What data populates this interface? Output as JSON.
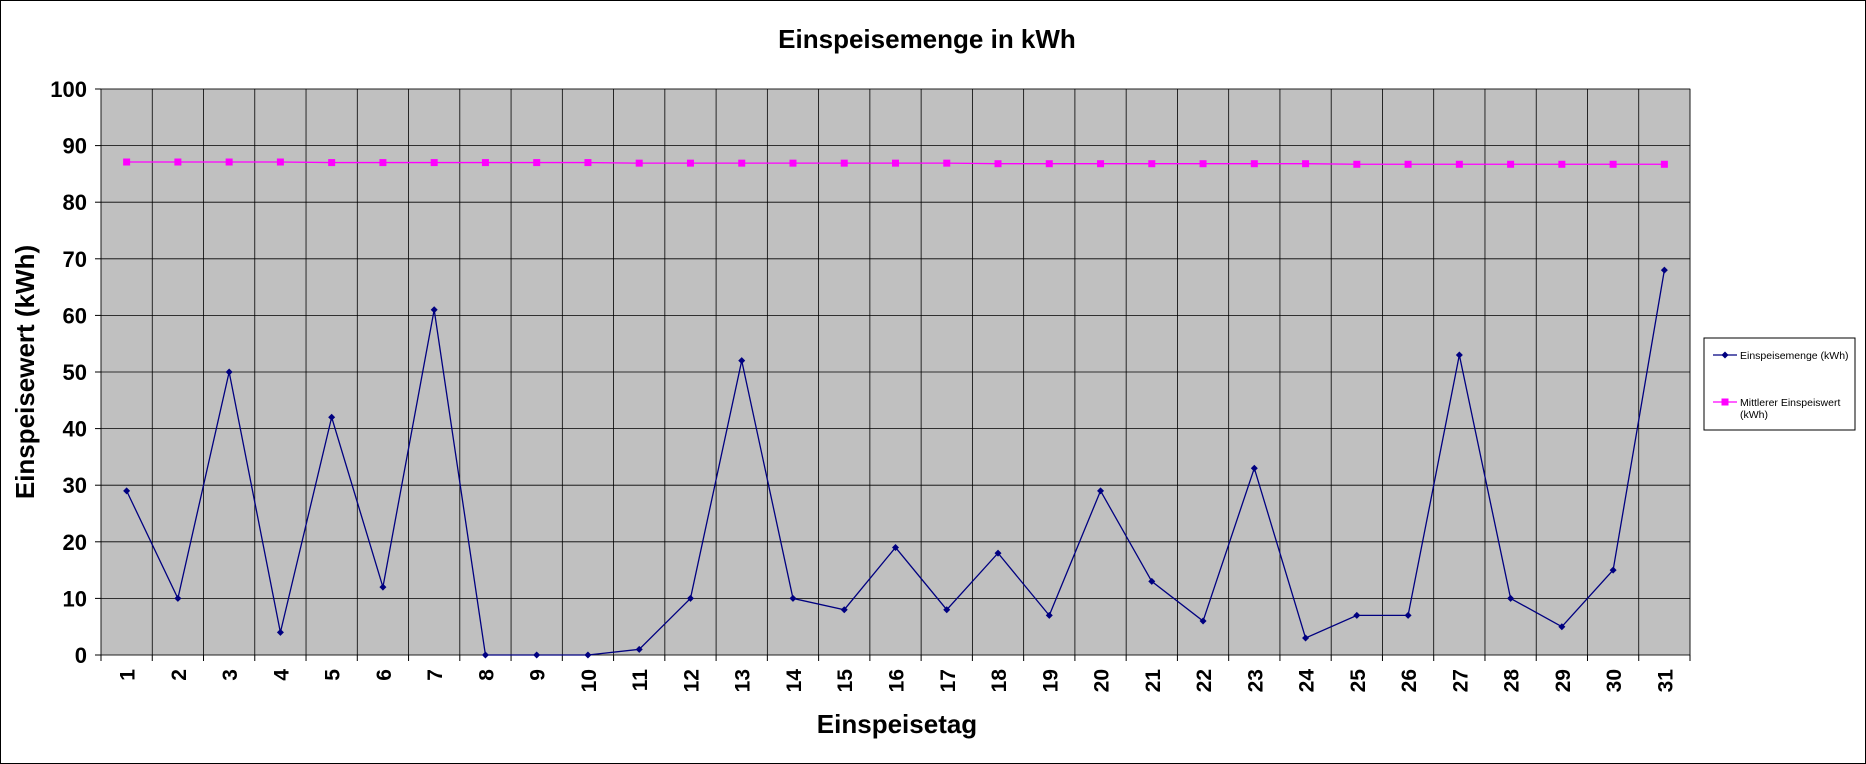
{
  "chart_data": {
    "type": "line",
    "title": "Einspeisemenge in kWh",
    "xlabel": "Einspeisetag",
    "ylabel": "Einspeisewert  (kWh)",
    "ylim": [
      0,
      100
    ],
    "yticks": [
      0,
      10,
      20,
      30,
      40,
      50,
      60,
      70,
      80,
      90,
      100
    ],
    "grid": true,
    "legend_position": "right",
    "plot_background": "#c0c0c0",
    "categories": [
      "1",
      "2",
      "3",
      "4",
      "5",
      "6",
      "7",
      "8",
      "9",
      "10",
      "11",
      "12",
      "13",
      "14",
      "15",
      "16",
      "17",
      "18",
      "19",
      "20",
      "21",
      "22",
      "23",
      "24",
      "25",
      "26",
      "27",
      "28",
      "29",
      "30",
      "31"
    ],
    "series": [
      {
        "name": "Einspeisemenge (kWh)",
        "color": "#000080",
        "marker": "diamond",
        "values": [
          29,
          10,
          50,
          4,
          42,
          12,
          61,
          0,
          0,
          0,
          1,
          10,
          52,
          10,
          8,
          19,
          8,
          18,
          7,
          29,
          13,
          6,
          33,
          3,
          7,
          7,
          53,
          10,
          5,
          15,
          68
        ]
      },
      {
        "name": "Mittlerer Einspeiswert (kWh)",
        "color": "#ff00ff",
        "marker": "square",
        "values": [
          87.1,
          87.1,
          87.1,
          87.1,
          87.0,
          87.0,
          87.0,
          87.0,
          87.0,
          87.0,
          86.9,
          86.9,
          86.9,
          86.9,
          86.9,
          86.9,
          86.9,
          86.8,
          86.8,
          86.8,
          86.8,
          86.8,
          86.8,
          86.8,
          86.7,
          86.7,
          86.7,
          86.7,
          86.7,
          86.7,
          86.7
        ]
      }
    ]
  }
}
